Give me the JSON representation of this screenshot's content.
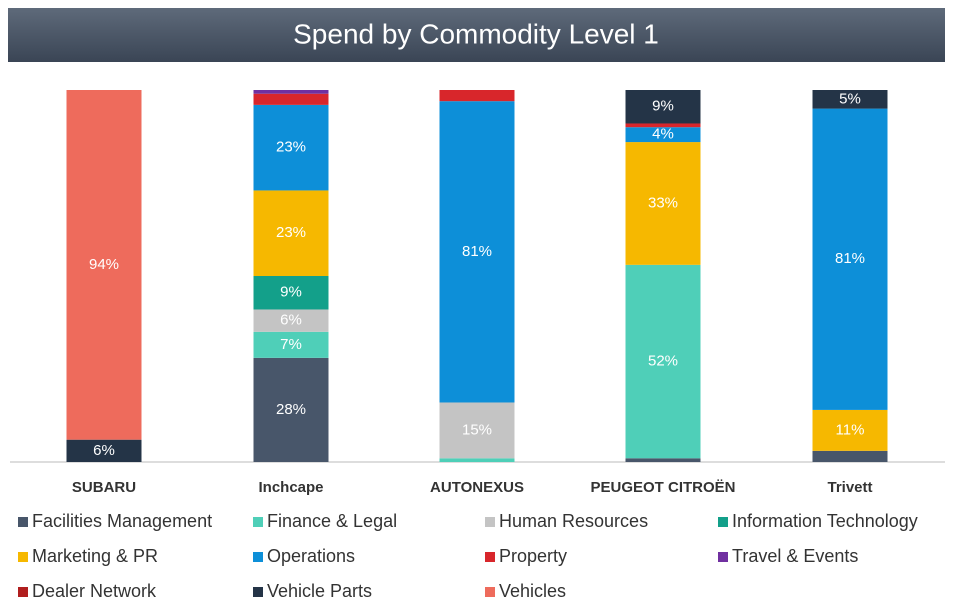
{
  "chart_data": {
    "type": "stacked_bar",
    "title": "Spend by Commodity Level 1",
    "categories": [
      "SUBARU",
      "Inchcape",
      "AUTONEXUS",
      "PEUGEOT CITROËN",
      "Trivett"
    ],
    "ylim": [
      0,
      100
    ],
    "series": [
      {
        "name": "Facilities Management",
        "color": "#48566a",
        "values": [
          0,
          28,
          0,
          1,
          3
        ],
        "value_labels": [
          null,
          "28%",
          null,
          null,
          null
        ]
      },
      {
        "name": "Finance & Legal",
        "color": "#4fcfb8",
        "values": [
          0,
          7,
          1,
          52,
          0
        ],
        "value_labels": [
          null,
          "7%",
          null,
          "52%",
          null
        ]
      },
      {
        "name": "Human Resources",
        "color": "#c4c4c4",
        "values": [
          0,
          6,
          15,
          0,
          0
        ],
        "value_labels": [
          null,
          "6%",
          "15%",
          null,
          null
        ]
      },
      {
        "name": "Information Technology",
        "color": "#13a08a",
        "values": [
          0,
          9,
          0,
          0,
          0
        ],
        "value_labels": [
          null,
          "9%",
          null,
          null,
          null
        ]
      },
      {
        "name": "Marketing & PR",
        "color": "#f6b800",
        "values": [
          0,
          23,
          0,
          33,
          11
        ],
        "value_labels": [
          null,
          "23%",
          null,
          "33%",
          "11%"
        ]
      },
      {
        "name": "Operations",
        "color": "#0d8fd8",
        "values": [
          0,
          23,
          81,
          4,
          81
        ],
        "value_labels": [
          null,
          "23%",
          "81%",
          "4%",
          "81%"
        ]
      },
      {
        "name": "Property",
        "color": "#d8262b",
        "values": [
          0,
          3,
          3,
          1,
          0
        ],
        "value_labels": [
          null,
          null,
          null,
          null,
          null
        ]
      },
      {
        "name": "Travel & Events",
        "color": "#7030a0",
        "values": [
          0,
          1,
          0,
          0,
          0
        ],
        "value_labels": [
          null,
          null,
          null,
          null,
          null
        ]
      },
      {
        "name": "Dealer Network",
        "color": "#b01e1e",
        "values": [
          0,
          0,
          0,
          0,
          0
        ],
        "value_labels": [
          null,
          null,
          null,
          null,
          null
        ]
      },
      {
        "name": "Vehicle Parts",
        "color": "#243447",
        "values": [
          6,
          0,
          0,
          9,
          5
        ],
        "value_labels": [
          "6%",
          null,
          null,
          "9%",
          "5%"
        ]
      },
      {
        "name": "Vehicles",
        "color": "#ee6b5c",
        "values": [
          94,
          0,
          0,
          0,
          0
        ],
        "value_labels": [
          "94%",
          null,
          null,
          null,
          null
        ]
      }
    ]
  }
}
